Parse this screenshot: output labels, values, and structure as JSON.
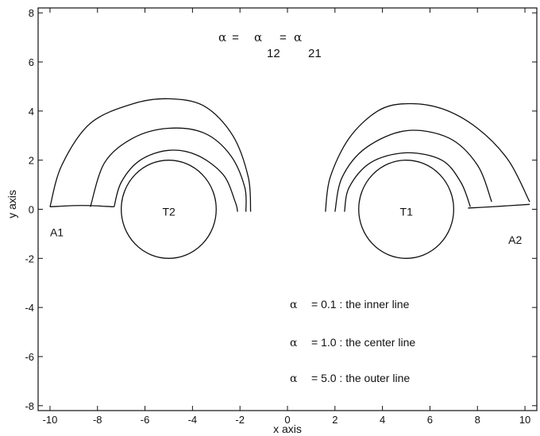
{
  "chart_data": {
    "type": "line",
    "xlabel": "x axis",
    "ylabel": "y axis",
    "xlim": [
      -10.5,
      10.5
    ],
    "ylim": [
      -8.2,
      8.2
    ],
    "xticks": [
      -10,
      -8,
      -6,
      -4,
      -2,
      0,
      2,
      4,
      6,
      8,
      10
    ],
    "yticks": [
      -8,
      -6,
      -4,
      -2,
      0,
      2,
      4,
      6,
      8
    ],
    "grid": false,
    "top_annotation": {
      "sym": "α",
      "eq": " = ",
      "sym2": "α",
      "sub1": "12",
      "eq2": "= ",
      "sym3": "α",
      "sub2": "21"
    },
    "legend_lines": [
      {
        "sym": "α",
        "text": "= 0.1 : the inner line"
      },
      {
        "sym": "α",
        "text": "= 1.0 : the center line"
      },
      {
        "sym": "α",
        "text": "= 5.0 : the outer line"
      }
    ],
    "targets": [
      {
        "label": "T2",
        "cx": -5,
        "cy": 0,
        "r": 2
      },
      {
        "label": "T1",
        "cx": 5,
        "cy": 0,
        "r": 2
      }
    ],
    "point_labels": [
      {
        "label": "A1",
        "x": -10.0,
        "y": -1.1
      },
      {
        "label": "A2",
        "x": 9.3,
        "y": -1.4
      }
    ],
    "series": [
      {
        "points": [
          [
            -7.3,
            0.1
          ],
          [
            -7.0,
            1.1
          ],
          [
            -6.2,
            2.0
          ],
          [
            -5.0,
            2.4
          ],
          [
            -3.8,
            2.2
          ],
          [
            -2.7,
            1.4
          ],
          [
            -2.2,
            0.3
          ],
          [
            -2.1,
            -0.1
          ]
        ]
      },
      {
        "points": [
          [
            -8.3,
            0.1
          ],
          [
            -7.7,
            1.9
          ],
          [
            -6.5,
            2.9
          ],
          [
            -5.0,
            3.3
          ],
          [
            -3.5,
            3.1
          ],
          [
            -2.4,
            2.2
          ],
          [
            -1.8,
            0.9
          ],
          [
            -1.75,
            -0.1
          ]
        ]
      },
      {
        "points": [
          [
            -10.0,
            0.1
          ],
          [
            -9.5,
            1.8
          ],
          [
            -8.3,
            3.5
          ],
          [
            -6.5,
            4.3
          ],
          [
            -5.0,
            4.5
          ],
          [
            -3.5,
            4.2
          ],
          [
            -2.3,
            3.0
          ],
          [
            -1.65,
            1.3
          ],
          [
            -1.55,
            -0.1
          ]
        ]
      },
      {
        "points": [
          [
            -10.0,
            0.1
          ],
          [
            -9.0,
            0.15
          ],
          [
            -8.3,
            0.15
          ],
          [
            -7.3,
            0.1
          ]
        ]
      },
      {
        "points": [
          [
            1.6,
            -0.1
          ],
          [
            1.8,
            1.3
          ],
          [
            2.6,
            2.9
          ],
          [
            3.8,
            4.0
          ],
          [
            5.0,
            4.3
          ],
          [
            6.5,
            4.1
          ],
          [
            8.0,
            3.3
          ],
          [
            9.3,
            2.0
          ],
          [
            10.2,
            0.3
          ]
        ]
      },
      {
        "points": [
          [
            2.0,
            -0.1
          ],
          [
            2.3,
            1.3
          ],
          [
            3.3,
            2.5
          ],
          [
            5.0,
            3.2
          ],
          [
            6.8,
            2.9
          ],
          [
            8.0,
            1.8
          ],
          [
            8.6,
            0.3
          ]
        ]
      },
      {
        "points": [
          [
            2.4,
            -0.1
          ],
          [
            2.6,
            0.9
          ],
          [
            3.5,
            1.9
          ],
          [
            5.0,
            2.3
          ],
          [
            6.5,
            2.0
          ],
          [
            7.3,
            1.1
          ],
          [
            7.7,
            0.1
          ]
        ]
      },
      {
        "points": [
          [
            7.6,
            0.05
          ],
          [
            8.6,
            0.1
          ],
          [
            10.2,
            0.2
          ]
        ]
      }
    ]
  }
}
